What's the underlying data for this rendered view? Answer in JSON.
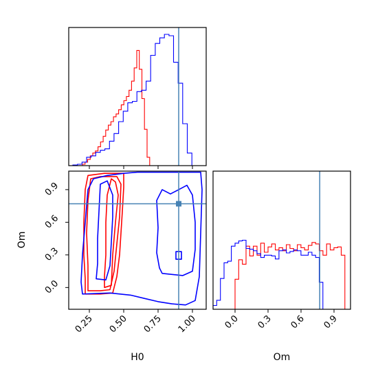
{
  "chart_data": {
    "type": "corner",
    "params": [
      "H0",
      "Om"
    ],
    "axis_labels": {
      "H0": "H0",
      "Om": "Om"
    },
    "xlim": {
      "H0": [
        0.1,
        1.1
      ],
      "Om": [
        -0.2,
        1.05
      ]
    },
    "ylim": {
      "Om": [
        -0.2,
        1.07
      ]
    },
    "ticks": {
      "H0": [
        "0.25",
        "0.50",
        "0.75",
        "1.00"
      ],
      "Om": [
        "0.0",
        "0.3",
        "0.6",
        "0.9"
      ]
    },
    "truth": {
      "H0": 0.9,
      "Om": 0.77
    },
    "colors": {
      "series_red": "#ff0000",
      "series_blue": "#0000ff",
      "truth": "#4682b4"
    },
    "series": [
      {
        "color": "red",
        "H0_hist": {
          "edges_start": 0.2,
          "bin_width": 0.0188,
          "counts": [
            2,
            5,
            9,
            14,
            18,
            21,
            27,
            34,
            42,
            51,
            58,
            63,
            70,
            74,
            80,
            87,
            93,
            99,
            108,
            121,
            140,
            165,
            138,
            96,
            52,
            12
          ]
        },
        "Om_hist": {
          "edges_start": 0.0,
          "bin_width": 0.0333,
          "counts": [
            40,
            66,
            60,
            84,
            71,
            84,
            72,
            88,
            76,
            83,
            87,
            79,
            82,
            78,
            86,
            81,
            78,
            86,
            82,
            79,
            85,
            89,
            87,
            78,
            72,
            87,
            79,
            82,
            83,
            72
          ]
        },
        "contours": [
          [
            [
              0.22,
              -0.06
            ],
            [
              0.33,
              -0.06
            ],
            [
              0.42,
              -0.05
            ],
            [
              0.45,
              0.1
            ],
            [
              0.47,
              0.3
            ],
            [
              0.48,
              0.5
            ],
            [
              0.49,
              0.7
            ],
            [
              0.5,
              0.92
            ],
            [
              0.5,
              1.05
            ],
            [
              0.36,
              1.05
            ],
            [
              0.24,
              1.03
            ],
            [
              0.22,
              0.9
            ],
            [
              0.21,
              0.6
            ],
            [
              0.21,
              0.3
            ],
            [
              0.22,
              0.08
            ]
          ],
          [
            [
              0.24,
              -0.03
            ],
            [
              0.33,
              -0.03
            ],
            [
              0.4,
              -0.02
            ],
            [
              0.43,
              0.15
            ],
            [
              0.45,
              0.4
            ],
            [
              0.47,
              0.65
            ],
            [
              0.48,
              0.95
            ],
            [
              0.45,
              1.02
            ],
            [
              0.33,
              1.02
            ],
            [
              0.26,
              1.0
            ],
            [
              0.24,
              0.8
            ],
            [
              0.23,
              0.5
            ],
            [
              0.24,
              0.2
            ]
          ],
          [
            [
              0.36,
              0.0
            ],
            [
              0.41,
              0.02
            ],
            [
              0.42,
              0.3
            ],
            [
              0.44,
              0.6
            ],
            [
              0.46,
              0.85
            ],
            [
              0.44,
              0.97
            ],
            [
              0.41,
              1.0
            ],
            [
              0.38,
              0.85
            ],
            [
              0.37,
              0.6
            ],
            [
              0.37,
              0.3
            ],
            [
              0.36,
              0.1
            ]
          ]
        ]
      },
      {
        "color": "blue",
        "H0_hist": {
          "edges_start": 0.13,
          "bin_width": 0.0333,
          "counts": [
            1,
            2,
            5,
            12,
            14,
            19,
            22,
            24,
            35,
            46,
            63,
            78,
            90,
            92,
            106,
            108,
            121,
            158,
            175,
            183,
            188,
            186,
            148,
            118,
            60,
            18
          ]
        },
        "Om_hist": {
          "edges_start": -0.2,
          "bin_width": 0.0333,
          "counts": [
            5,
            12,
            41,
            62,
            64,
            84,
            88,
            91,
            92,
            81,
            80,
            78,
            74,
            69,
            72,
            72,
            71,
            67,
            78,
            79,
            75,
            77,
            79,
            78,
            72,
            72,
            76,
            72,
            69,
            36
          ]
        },
        "contours": [
          [
            [
              0.2,
              -0.06
            ],
            [
              0.4,
              -0.05
            ],
            [
              0.55,
              -0.07
            ],
            [
              0.65,
              -0.1
            ],
            [
              0.75,
              -0.13
            ],
            [
              0.85,
              -0.15
            ],
            [
              0.95,
              -0.16
            ],
            [
              1.02,
              -0.12
            ],
            [
              1.05,
              0.1
            ],
            [
              1.06,
              0.5
            ],
            [
              1.07,
              0.9
            ],
            [
              1.06,
              1.06
            ],
            [
              0.6,
              1.06
            ],
            [
              0.5,
              1.05
            ],
            [
              0.38,
              1.03
            ],
            [
              0.28,
              1.0
            ],
            [
              0.24,
              0.9
            ],
            [
              0.22,
              0.6
            ],
            [
              0.2,
              0.3
            ],
            [
              0.19,
              0.05
            ]
          ],
          [
            [
              0.78,
              0.13
            ],
            [
              0.93,
              0.11
            ],
            [
              1.0,
              0.15
            ],
            [
              1.02,
              0.35
            ],
            [
              1.02,
              0.6
            ],
            [
              1.0,
              0.85
            ],
            [
              0.96,
              0.94
            ],
            [
              0.9,
              0.9
            ],
            [
              0.84,
              0.86
            ],
            [
              0.78,
              0.9
            ],
            [
              0.74,
              0.8
            ],
            [
              0.75,
              0.55
            ],
            [
              0.74,
              0.32
            ],
            [
              0.76,
              0.18
            ]
          ],
          [
            [
              0.3,
              0.08
            ],
            [
              0.37,
              0.07
            ],
            [
              0.4,
              0.2
            ],
            [
              0.41,
              0.42
            ],
            [
              0.42,
              0.65
            ],
            [
              0.42,
              0.85
            ],
            [
              0.38,
              0.98
            ],
            [
              0.33,
              0.95
            ],
            [
              0.32,
              0.7
            ],
            [
              0.31,
              0.45
            ],
            [
              0.31,
              0.22
            ]
          ],
          [
            [
              0.88,
              0.26
            ],
            [
              0.92,
              0.26
            ],
            [
              0.92,
              0.33
            ],
            [
              0.88,
              0.33
            ]
          ]
        ]
      }
    ]
  }
}
